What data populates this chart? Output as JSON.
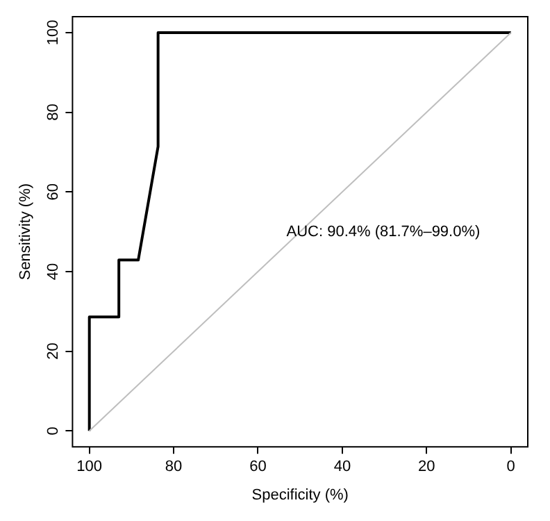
{
  "chart_data": {
    "type": "line",
    "xlabel": "Specificity (%)",
    "ylabel": "Sensitivity (%)",
    "xlim": [
      104,
      -4
    ],
    "ylim": [
      -4,
      104
    ],
    "xticks": [
      100,
      80,
      60,
      40,
      20,
      0
    ],
    "yticks": [
      0,
      20,
      40,
      60,
      80,
      100
    ],
    "grid": false,
    "legend": false,
    "marker": "none",
    "line_style": "solid",
    "series": [
      {
        "color": "#bebebe",
        "x": [
          100,
          0
        ],
        "values": [
          0,
          100
        ]
      },
      {
        "color": "#000000",
        "x": [
          100,
          100,
          93,
          93,
          88.4,
          83.7,
          83.7,
          0
        ],
        "values": [
          0,
          28.6,
          28.6,
          42.9,
          42.9,
          71.4,
          100,
          100
        ]
      }
    ],
    "annotations": [
      "AUC: 90.4% (81.7%–99.0%)"
    ]
  }
}
